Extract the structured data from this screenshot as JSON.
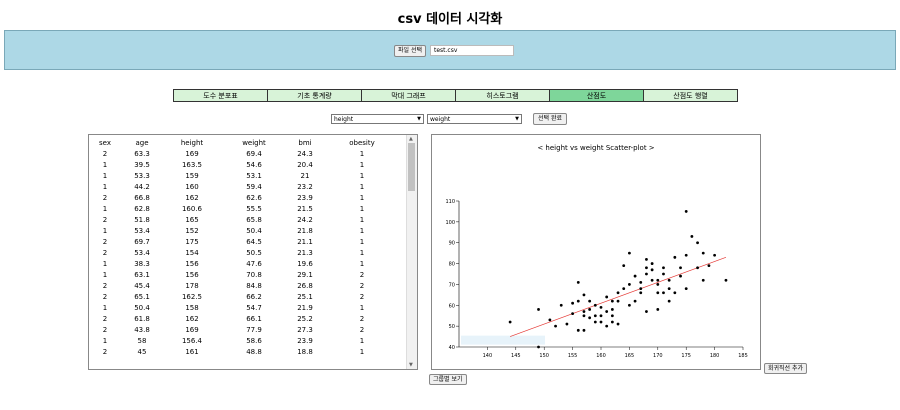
{
  "page": {
    "title": "csv 데이터 시각화"
  },
  "upload": {
    "button_label": "파일 선택",
    "file_name": "test.csv"
  },
  "tabs": [
    {
      "label": "도수 분포표",
      "active": false
    },
    {
      "label": "기초 통계량",
      "active": false
    },
    {
      "label": "막대 그래프",
      "active": false
    },
    {
      "label": "히스토그램",
      "active": false
    },
    {
      "label": "산점도",
      "active": true
    },
    {
      "label": "산점도 행렬",
      "active": false
    }
  ],
  "selectors": {
    "x_value": "height",
    "y_value": "weight",
    "apply_label": "선택 완료"
  },
  "table": {
    "columns": [
      "sex",
      "age",
      "height",
      "weight",
      "bmi",
      "obesity"
    ],
    "rows": [
      [
        "2",
        "63.3",
        "169",
        "69.4",
        "24.3",
        "1"
      ],
      [
        "1",
        "39.5",
        "163.5",
        "54.6",
        "20.4",
        "1"
      ],
      [
        "1",
        "53.3",
        "159",
        "53.1",
        "21",
        "1"
      ],
      [
        "1",
        "44.2",
        "160",
        "59.4",
        "23.2",
        "1"
      ],
      [
        "2",
        "66.8",
        "162",
        "62.6",
        "23.9",
        "1"
      ],
      [
        "1",
        "62.8",
        "160.6",
        "55.5",
        "21.5",
        "1"
      ],
      [
        "2",
        "51.8",
        "165",
        "65.8",
        "24.2",
        "1"
      ],
      [
        "1",
        "53.4",
        "152",
        "50.4",
        "21.8",
        "1"
      ],
      [
        "2",
        "69.7",
        "175",
        "64.5",
        "21.1",
        "1"
      ],
      [
        "2",
        "53.4",
        "154",
        "50.5",
        "21.3",
        "1"
      ],
      [
        "1",
        "38.3",
        "156",
        "47.6",
        "19.6",
        "1"
      ],
      [
        "1",
        "63.1",
        "156",
        "70.8",
        "29.1",
        "2"
      ],
      [
        "2",
        "45.4",
        "178",
        "84.8",
        "26.8",
        "2"
      ],
      [
        "2",
        "65.1",
        "162.5",
        "66.2",
        "25.1",
        "2"
      ],
      [
        "1",
        "50.4",
        "158",
        "54.7",
        "21.9",
        "1"
      ],
      [
        "2",
        "61.8",
        "162",
        "66.1",
        "25.2",
        "2"
      ],
      [
        "2",
        "43.8",
        "169",
        "77.9",
        "27.3",
        "2"
      ],
      [
        "1",
        "58",
        "156.4",
        "58.6",
        "23.9",
        "1"
      ],
      [
        "2",
        "45",
        "161",
        "48.8",
        "18.8",
        "1"
      ]
    ]
  },
  "chart_data": {
    "type": "scatter",
    "title": "< height vs weight Scatter-plot >",
    "xlim": [
      135,
      185
    ],
    "ylim": [
      40,
      110
    ],
    "x_ticks": [
      140,
      145,
      150,
      155,
      160,
      165,
      170,
      175,
      180,
      185
    ],
    "y_ticks": [
      40,
      50,
      60,
      70,
      80,
      90,
      100,
      110
    ],
    "regression_line": {
      "x": [
        144,
        182
      ],
      "y": [
        45,
        83
      ],
      "color": "#e53935"
    },
    "points": [
      {
        "x": 144,
        "y": 52
      },
      {
        "x": 149,
        "y": 58
      },
      {
        "x": 149,
        "y": 40
      },
      {
        "x": 151,
        "y": 53
      },
      {
        "x": 152,
        "y": 50
      },
      {
        "x": 153,
        "y": 60
      },
      {
        "x": 154,
        "y": 51
      },
      {
        "x": 155,
        "y": 61
      },
      {
        "x": 155,
        "y": 56
      },
      {
        "x": 156,
        "y": 48
      },
      {
        "x": 156,
        "y": 71
      },
      {
        "x": 156,
        "y": 62
      },
      {
        "x": 157,
        "y": 48
      },
      {
        "x": 157,
        "y": 57
      },
      {
        "x": 157,
        "y": 55
      },
      {
        "x": 157,
        "y": 65
      },
      {
        "x": 158,
        "y": 54
      },
      {
        "x": 158,
        "y": 58
      },
      {
        "x": 158,
        "y": 62
      },
      {
        "x": 159,
        "y": 52
      },
      {
        "x": 159,
        "y": 55
      },
      {
        "x": 159,
        "y": 60
      },
      {
        "x": 160,
        "y": 52
      },
      {
        "x": 160,
        "y": 59
      },
      {
        "x": 160,
        "y": 55
      },
      {
        "x": 161,
        "y": 57
      },
      {
        "x": 161,
        "y": 50
      },
      {
        "x": 161,
        "y": 64
      },
      {
        "x": 162,
        "y": 55
      },
      {
        "x": 162,
        "y": 62
      },
      {
        "x": 162,
        "y": 52
      },
      {
        "x": 162,
        "y": 58
      },
      {
        "x": 163,
        "y": 66
      },
      {
        "x": 163,
        "y": 51
      },
      {
        "x": 163,
        "y": 62
      },
      {
        "x": 164,
        "y": 68
      },
      {
        "x": 164,
        "y": 79
      },
      {
        "x": 165,
        "y": 70
      },
      {
        "x": 165,
        "y": 85
      },
      {
        "x": 165,
        "y": 60
      },
      {
        "x": 166,
        "y": 62
      },
      {
        "x": 166,
        "y": 74
      },
      {
        "x": 167,
        "y": 68
      },
      {
        "x": 167,
        "y": 66
      },
      {
        "x": 167,
        "y": 71
      },
      {
        "x": 168,
        "y": 78
      },
      {
        "x": 168,
        "y": 75
      },
      {
        "x": 168,
        "y": 82
      },
      {
        "x": 168,
        "y": 57
      },
      {
        "x": 169,
        "y": 77
      },
      {
        "x": 169,
        "y": 72
      },
      {
        "x": 169,
        "y": 80
      },
      {
        "x": 170,
        "y": 70
      },
      {
        "x": 170,
        "y": 66
      },
      {
        "x": 170,
        "y": 72
      },
      {
        "x": 170,
        "y": 58
      },
      {
        "x": 171,
        "y": 66
      },
      {
        "x": 171,
        "y": 75
      },
      {
        "x": 171,
        "y": 78
      },
      {
        "x": 172,
        "y": 72
      },
      {
        "x": 172,
        "y": 68
      },
      {
        "x": 172,
        "y": 62
      },
      {
        "x": 173,
        "y": 83
      },
      {
        "x": 173,
        "y": 66
      },
      {
        "x": 174,
        "y": 78
      },
      {
        "x": 174,
        "y": 74
      },
      {
        "x": 175,
        "y": 105
      },
      {
        "x": 175,
        "y": 84
      },
      {
        "x": 175,
        "y": 68
      },
      {
        "x": 176,
        "y": 93
      },
      {
        "x": 177,
        "y": 78
      },
      {
        "x": 177,
        "y": 90
      },
      {
        "x": 178,
        "y": 85
      },
      {
        "x": 178,
        "y": 72
      },
      {
        "x": 179,
        "y": 79
      },
      {
        "x": 180,
        "y": 84
      },
      {
        "x": 182,
        "y": 72
      }
    ]
  },
  "buttons": {
    "regression": "회귀직선 추가",
    "group": "그룹별 보기"
  }
}
